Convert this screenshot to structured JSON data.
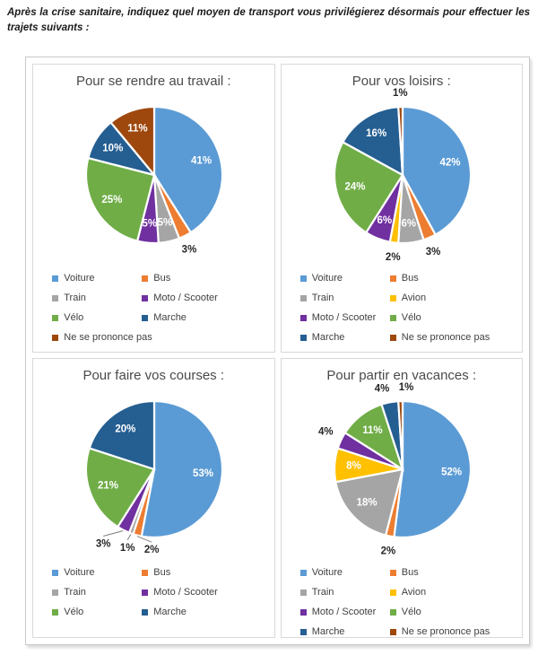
{
  "intro_text": "Après la crise sanitaire, indiquez quel moyen de transport vous privilégierez désormais pour effectuer les trajets suivants :",
  "palette": {
    "Voiture": "#5B9BD5",
    "Bus": "#ED7D31",
    "Train": "#A5A5A5",
    "Avion": "#FFC000",
    "Moto / Scooter": "#7030A0",
    "Vélo": "#70AD47",
    "Marche": "#255E91",
    "Ne se prononce pas": "#9E480E"
  },
  "chart_data": [
    {
      "type": "pie",
      "title": "Pour se rendre au travail :",
      "labels": [
        "Voiture",
        "Bus",
        "Train",
        "Moto / Scooter",
        "Vélo",
        "Marche",
        "Ne se prononce pas"
      ],
      "values": [
        41,
        3,
        5,
        5,
        25,
        10,
        11
      ],
      "data_label_format": "{value}%",
      "legend_position": "bottom",
      "start_angle": "top",
      "direction": "clockwise"
    },
    {
      "type": "pie",
      "title": "Pour vos loisirs :",
      "labels": [
        "Voiture",
        "Bus",
        "Train",
        "Avion",
        "Moto / Scooter",
        "Vélo",
        "Marche",
        "Ne se prononce pas"
      ],
      "values": [
        42,
        3,
        6,
        2,
        6,
        24,
        16,
        1
      ],
      "data_label_format": "{value}%",
      "legend_position": "bottom",
      "start_angle": "top",
      "direction": "clockwise"
    },
    {
      "type": "pie",
      "title": "Pour faire vos courses :",
      "labels": [
        "Voiture",
        "Bus",
        "Train",
        "Moto / Scooter",
        "Vélo",
        "Marche"
      ],
      "values": [
        53,
        2,
        1,
        3,
        21,
        20
      ],
      "data_label_format": "{value}%",
      "legend_position": "bottom",
      "start_angle": "top",
      "direction": "clockwise"
    },
    {
      "type": "pie",
      "title": "Pour partir en vacances :",
      "labels": [
        "Voiture",
        "Bus",
        "Train",
        "Avion",
        "Moto / Scooter",
        "Vélo",
        "Marche",
        "Ne se prononce pas"
      ],
      "values": [
        52,
        2,
        18,
        8,
        4,
        11,
        4,
        1
      ],
      "data_label_format": "{value}%",
      "legend_position": "bottom",
      "start_angle": "top",
      "direction": "clockwise"
    }
  ]
}
